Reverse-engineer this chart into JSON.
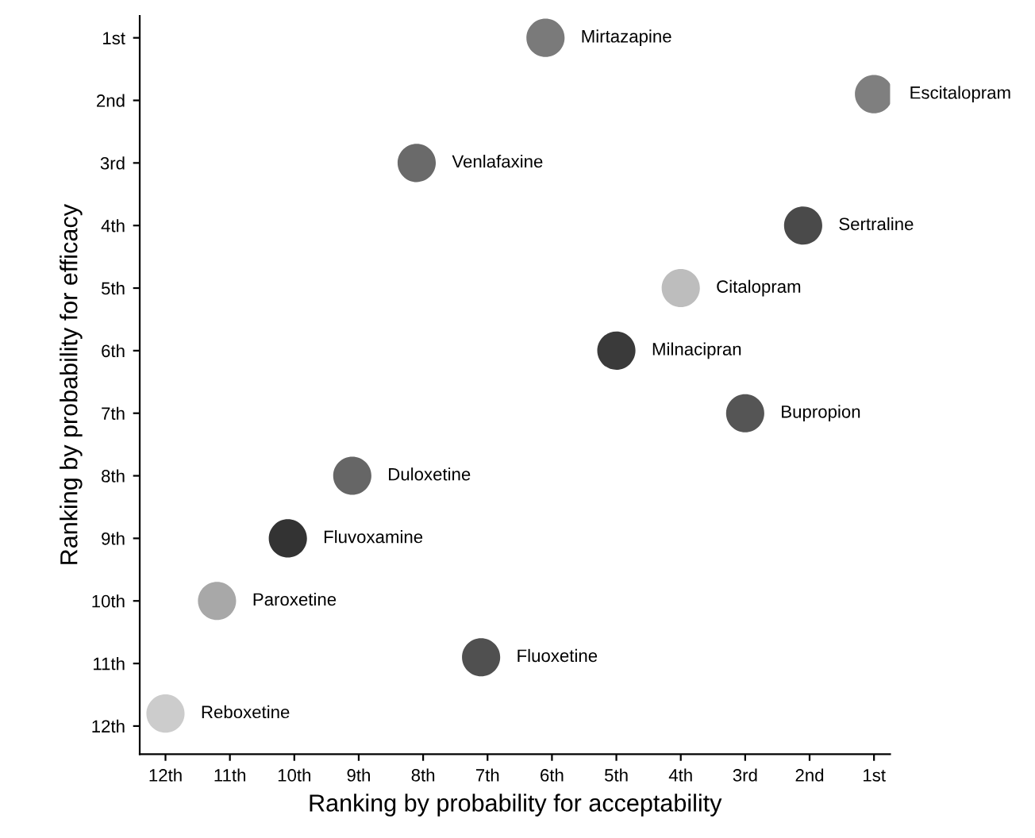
{
  "chart_data": {
    "type": "scatter",
    "xlabel": "Ranking by probability for acceptability",
    "ylabel": "Ranking by probability for efficacy",
    "x": [
      6.1,
      1.0,
      8.1,
      2.1,
      4.0,
      5.0,
      3.0,
      9.1,
      10.1,
      11.2,
      7.1,
      12.0
    ],
    "series": [
      {
        "values": [
          1.0,
          1.9,
          3.0,
          4.0,
          5.0,
          6.0,
          7.0,
          8.0,
          9.0,
          10.0,
          10.9,
          11.8
        ],
        "colors": [
          "#7a7a7a",
          "#7f7f7f",
          "#6a6a6a",
          "#4a4a4a",
          "#bdbdbd",
          "#3a3a3a",
          "#555555",
          "#666666",
          "#333333",
          "#a8a8a8",
          "#505050",
          "#cccccc"
        ]
      }
    ],
    "annotations": [
      {
        "text": "Mirtazapine",
        "x": 6.1,
        "y": 1.0
      },
      {
        "text": "Escitalopram",
        "x": 1.0,
        "y": 1.9
      },
      {
        "text": "Venlafaxine",
        "x": 8.1,
        "y": 3.0
      },
      {
        "text": "Sertraline",
        "x": 2.1,
        "y": 4.0
      },
      {
        "text": "Citalopram",
        "x": 4.0,
        "y": 5.0
      },
      {
        "text": "Milnacipran",
        "x": 5.0,
        "y": 6.0
      },
      {
        "text": "Bupropion",
        "x": 3.0,
        "y": 7.0
      },
      {
        "text": "Duloxetine",
        "x": 9.1,
        "y": 8.0
      },
      {
        "text": "Fluvoxamine",
        "x": 10.1,
        "y": 9.0
      },
      {
        "text": "Paroxetine",
        "x": 11.2,
        "y": 10.0
      },
      {
        "text": "Fluoxetine",
        "x": 7.1,
        "y": 10.9
      },
      {
        "text": "Reboxetine",
        "x": 12.0,
        "y": 11.8
      }
    ],
    "xlim": [
      12.4,
      0.75
    ],
    "ylim": [
      12.45,
      0.65
    ],
    "xticks": [
      {
        "value": 12,
        "label": "12th"
      },
      {
        "value": 11,
        "label": "11th"
      },
      {
        "value": 10,
        "label": "10th"
      },
      {
        "value": 9,
        "label": "9th"
      },
      {
        "value": 8,
        "label": "8th"
      },
      {
        "value": 7,
        "label": "7th"
      },
      {
        "value": 6,
        "label": "6th"
      },
      {
        "value": 5,
        "label": "5th"
      },
      {
        "value": 4,
        "label": "4th"
      },
      {
        "value": 3,
        "label": "3rd"
      },
      {
        "value": 2,
        "label": "2nd"
      },
      {
        "value": 1,
        "label": "1st"
      }
    ],
    "yticks": [
      {
        "value": 1,
        "label": "1st"
      },
      {
        "value": 2,
        "label": "2nd"
      },
      {
        "value": 3,
        "label": "3rd"
      },
      {
        "value": 4,
        "label": "4th"
      },
      {
        "value": 5,
        "label": "5th"
      },
      {
        "value": 6,
        "label": "6th"
      },
      {
        "value": 7,
        "label": "7th"
      },
      {
        "value": 8,
        "label": "8th"
      },
      {
        "value": 9,
        "label": "9th"
      },
      {
        "value": 10,
        "label": "10th"
      },
      {
        "value": 11,
        "label": "11th"
      },
      {
        "value": 12,
        "label": "12th"
      }
    ],
    "grid": false,
    "marker": "circle"
  }
}
